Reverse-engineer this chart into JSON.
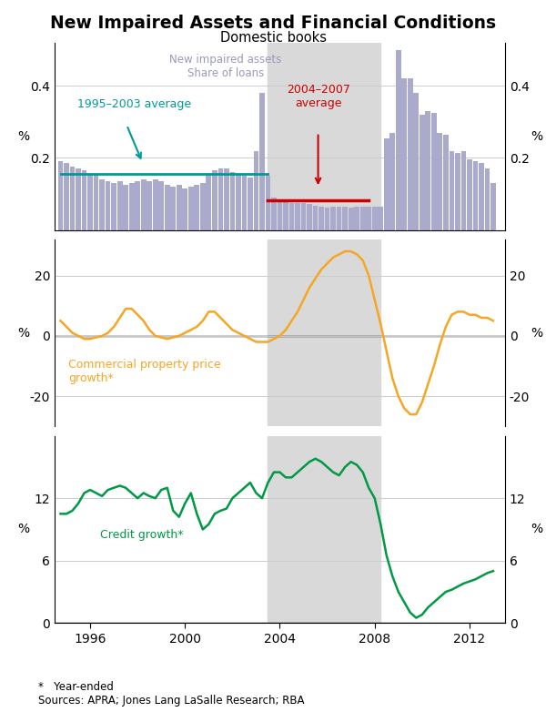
{
  "title": "New Impaired Assets and Financial Conditions",
  "subtitle": "Domestic books",
  "footnote": "*   Year-ended\nSources: APRA; Jones Lang LaSalle Research; RBA",
  "shade_start": 2003.5,
  "shade_end": 2008.25,
  "shade_color": "#d9d9d9",
  "panel1": {
    "ylabel_left": "%",
    "ylabel_right": "%",
    "ylim": [
      0,
      0.52
    ],
    "yticks": [
      0.2,
      0.4
    ],
    "bar_color": "#aaaacc",
    "avg1_label": "1995–2003 average",
    "avg1_value": 0.155,
    "avg1_start": 1994.75,
    "avg1_end": 2003.5,
    "avg1_color": "#009999",
    "avg2_label": "2004–2007\naverage",
    "avg2_value": 0.083,
    "avg2_start": 2003.5,
    "avg2_end": 2007.75,
    "avg2_color": "#cc0000",
    "legend_label1": "New impaired assets",
    "legend_label2": "Share of loans",
    "bar_data": {
      "years": [
        1994.75,
        1995.0,
        1995.25,
        1995.5,
        1995.75,
        1996.0,
        1996.25,
        1996.5,
        1996.75,
        1997.0,
        1997.25,
        1997.5,
        1997.75,
        1998.0,
        1998.25,
        1998.5,
        1998.75,
        1999.0,
        1999.25,
        1999.5,
        1999.75,
        2000.0,
        2000.25,
        2000.5,
        2000.75,
        2001.0,
        2001.25,
        2001.5,
        2001.75,
        2002.0,
        2002.25,
        2002.5,
        2002.75,
        2003.0,
        2003.25,
        2003.5,
        2003.75,
        2004.0,
        2004.25,
        2004.5,
        2004.75,
        2005.0,
        2005.25,
        2005.5,
        2005.75,
        2006.0,
        2006.25,
        2006.5,
        2006.75,
        2007.0,
        2007.25,
        2007.5,
        2007.75,
        2008.0,
        2008.25,
        2008.5,
        2008.75,
        2009.0,
        2009.25,
        2009.5,
        2009.75,
        2010.0,
        2010.25,
        2010.5,
        2010.75,
        2011.0,
        2011.25,
        2011.5,
        2011.75,
        2012.0,
        2012.25,
        2012.5,
        2012.75,
        2013.0
      ],
      "values": [
        0.19,
        0.185,
        0.175,
        0.17,
        0.165,
        0.155,
        0.155,
        0.14,
        0.135,
        0.13,
        0.135,
        0.125,
        0.13,
        0.135,
        0.14,
        0.135,
        0.14,
        0.135,
        0.125,
        0.12,
        0.125,
        0.115,
        0.12,
        0.125,
        0.13,
        0.155,
        0.165,
        0.17,
        0.17,
        0.16,
        0.155,
        0.15,
        0.145,
        0.22,
        0.38,
        0.15,
        0.09,
        0.085,
        0.08,
        0.075,
        0.075,
        0.075,
        0.072,
        0.068,
        0.065,
        0.062,
        0.065,
        0.065,
        0.065,
        0.062,
        0.065,
        0.065,
        0.065,
        0.065,
        0.065,
        0.255,
        0.27,
        0.5,
        0.42,
        0.42,
        0.38,
        0.32,
        0.33,
        0.325,
        0.27,
        0.265,
        0.22,
        0.215,
        0.22,
        0.195,
        0.19,
        0.185,
        0.17,
        0.13
      ]
    }
  },
  "panel2": {
    "ylabel_left": "%",
    "ylabel_right": "%",
    "ylim": [
      -30,
      32
    ],
    "yticks": [
      -20,
      0,
      20
    ],
    "line_color": "#f5a623",
    "label": "Commercial property price\ngrowth*",
    "data": {
      "years": [
        1994.75,
        1995.0,
        1995.25,
        1995.5,
        1995.75,
        1996.0,
        1996.25,
        1996.5,
        1996.75,
        1997.0,
        1997.25,
        1997.5,
        1997.75,
        1998.0,
        1998.25,
        1998.5,
        1998.75,
        1999.0,
        1999.25,
        1999.5,
        1999.75,
        2000.0,
        2000.25,
        2000.5,
        2000.75,
        2001.0,
        2001.25,
        2001.5,
        2001.75,
        2002.0,
        2002.25,
        2002.5,
        2002.75,
        2003.0,
        2003.25,
        2003.5,
        2003.75,
        2004.0,
        2004.25,
        2004.5,
        2004.75,
        2005.0,
        2005.25,
        2005.5,
        2005.75,
        2006.0,
        2006.25,
        2006.5,
        2006.75,
        2007.0,
        2007.25,
        2007.5,
        2007.75,
        2008.0,
        2008.25,
        2008.5,
        2008.75,
        2009.0,
        2009.25,
        2009.5,
        2009.75,
        2010.0,
        2010.25,
        2010.5,
        2010.75,
        2011.0,
        2011.25,
        2011.5,
        2011.75,
        2012.0,
        2012.25,
        2012.5,
        2012.75,
        2013.0
      ],
      "values": [
        5,
        3,
        1,
        0,
        -1,
        -1,
        -0.5,
        0,
        1,
        3,
        6,
        9,
        9,
        7,
        5,
        2,
        0,
        -0.5,
        -1,
        -0.5,
        0,
        1,
        2,
        3,
        5,
        8,
        8,
        6,
        4,
        2,
        1,
        0,
        -1,
        -2,
        -2,
        -2,
        -1,
        0,
        2,
        5,
        8,
        12,
        16,
        19,
        22,
        24,
        26,
        27,
        28,
        28,
        27,
        25,
        20,
        12,
        4,
        -5,
        -14,
        -20,
        -24,
        -26,
        -26,
        -22,
        -16,
        -10,
        -3,
        3,
        7,
        8,
        8,
        7,
        7,
        6,
        6,
        5
      ]
    }
  },
  "panel3": {
    "ylabel_left": "%",
    "ylabel_right": "%",
    "ylim": [
      0,
      18
    ],
    "yticks": [
      0,
      6,
      12
    ],
    "line_color": "#009944",
    "label": "Credit growth*",
    "data": {
      "years": [
        1994.75,
        1995.0,
        1995.25,
        1995.5,
        1995.75,
        1996.0,
        1996.25,
        1996.5,
        1996.75,
        1997.0,
        1997.25,
        1997.5,
        1997.75,
        1998.0,
        1998.25,
        1998.5,
        1998.75,
        1999.0,
        1999.25,
        1999.5,
        1999.75,
        2000.0,
        2000.25,
        2000.5,
        2000.75,
        2001.0,
        2001.25,
        2001.5,
        2001.75,
        2002.0,
        2002.25,
        2002.5,
        2002.75,
        2003.0,
        2003.25,
        2003.5,
        2003.75,
        2004.0,
        2004.25,
        2004.5,
        2004.75,
        2005.0,
        2005.25,
        2005.5,
        2005.75,
        2006.0,
        2006.25,
        2006.5,
        2006.75,
        2007.0,
        2007.25,
        2007.5,
        2007.75,
        2008.0,
        2008.25,
        2008.5,
        2008.75,
        2009.0,
        2009.25,
        2009.5,
        2009.75,
        2010.0,
        2010.25,
        2010.5,
        2010.75,
        2011.0,
        2011.25,
        2011.5,
        2011.75,
        2012.0,
        2012.25,
        2012.5,
        2012.75,
        2013.0
      ],
      "values": [
        10.5,
        10.5,
        10.8,
        11.5,
        12.5,
        12.8,
        12.5,
        12.2,
        12.8,
        13.0,
        13.2,
        13.0,
        12.5,
        12.0,
        12.5,
        12.2,
        12.0,
        12.8,
        13.0,
        10.8,
        10.2,
        11.5,
        12.5,
        10.5,
        9.0,
        9.5,
        10.5,
        10.8,
        11.0,
        12.0,
        12.5,
        13.0,
        13.5,
        12.5,
        12.0,
        13.5,
        14.5,
        14.5,
        14.0,
        14.0,
        14.5,
        15.0,
        15.5,
        15.8,
        15.5,
        15.0,
        14.5,
        14.2,
        15.0,
        15.5,
        15.2,
        14.5,
        13.0,
        12.0,
        9.5,
        6.5,
        4.5,
        3.0,
        2.0,
        1.0,
        0.5,
        0.8,
        1.5,
        2.0,
        2.5,
        3.0,
        3.2,
        3.5,
        3.8,
        4.0,
        4.2,
        4.5,
        4.8,
        5.0
      ]
    }
  },
  "xlim": [
    1994.5,
    2013.5
  ],
  "xticks": [
    1996,
    2000,
    2004,
    2008,
    2012
  ],
  "xticklabels": [
    "1996",
    "2000",
    "2004",
    "2008",
    "2012"
  ]
}
